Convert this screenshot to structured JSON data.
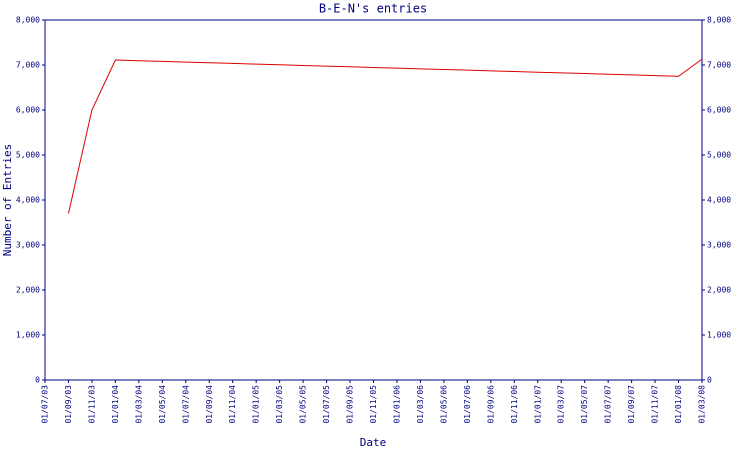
{
  "chart_data": {
    "type": "line",
    "title": "B-E-N's entries",
    "xlabel": "Date",
    "ylabel": "Number of Entries",
    "categories": [
      "01/07/03",
      "01/09/03",
      "01/11/03",
      "01/01/04",
      "01/03/04",
      "01/05/04",
      "01/07/04",
      "01/09/04",
      "01/11/04",
      "01/01/05",
      "01/03/05",
      "01/05/05",
      "01/07/05",
      "01/09/05",
      "01/11/05",
      "01/01/06",
      "01/03/06",
      "01/05/06",
      "01/07/06",
      "01/09/06",
      "01/11/06",
      "01/01/07",
      "01/03/07",
      "01/05/07",
      "01/07/07",
      "01/09/07",
      "01/11/07",
      "01/01/08",
      "01/03/08"
    ],
    "series": [
      {
        "color": "#dd0000",
        "values": [
          null,
          3700,
          6000,
          7110,
          7095,
          7080,
          7065,
          7050,
          7035,
          7020,
          7005,
          6990,
          6975,
          6960,
          6945,
          6930,
          6915,
          6900,
          6885,
          6870,
          6855,
          6840,
          6825,
          6810,
          6795,
          6780,
          6765,
          6750,
          7130
        ]
      }
    ],
    "ylim": [
      0,
      8000
    ],
    "yticks": [
      0,
      {
        "value": 1000,
        "label": "1,000"
      },
      {
        "value": 2000,
        "label": "2,000"
      },
      {
        "value": 3000,
        "label": "3,000"
      },
      {
        "value": 4000,
        "label": "4,000"
      },
      {
        "value": 5000,
        "label": "5,000"
      },
      {
        "value": 6000,
        "label": "6,000"
      },
      {
        "value": 7000,
        "label": "7,000"
      },
      {
        "value": 8000,
        "label": "8,000"
      }
    ],
    "y2lim": [
      0,
      8000
    ],
    "y2ticks": [
      0,
      {
        "value": 1000,
        "label": "1,000"
      },
      {
        "value": 2000,
        "label": "2,000"
      },
      {
        "value": 3000,
        "label": "3,000"
      },
      {
        "value": 4000,
        "label": "4,000"
      },
      {
        "value": 5000,
        "label": "5,000"
      },
      {
        "value": 6000,
        "label": "6,000"
      },
      {
        "value": 7000,
        "label": "7,000"
      },
      {
        "value": 8000,
        "label": "8,000"
      }
    ],
    "grid": false
  }
}
